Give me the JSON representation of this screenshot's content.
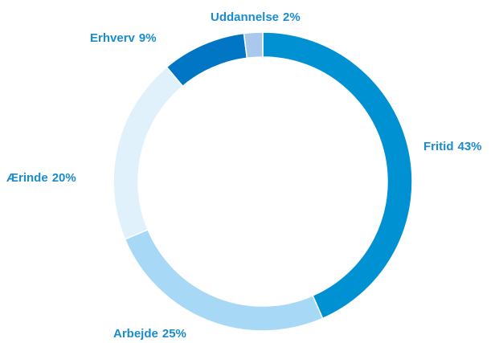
{
  "chart_data": {
    "type": "donut",
    "categories": [
      "Fritid",
      "Arbejde",
      "Ærinde",
      "Erhverv",
      "Uddannelse"
    ],
    "values": [
      43,
      25,
      20,
      9,
      2
    ],
    "value_labels": [
      "43%",
      "25%",
      "20%",
      "9%",
      "2%"
    ],
    "colors": [
      "#0091d2",
      "#a7d8f5",
      "#e1f1fc",
      "#0076c4",
      "#a9c8ec"
    ],
    "label_color": "#1a8ccc"
  }
}
